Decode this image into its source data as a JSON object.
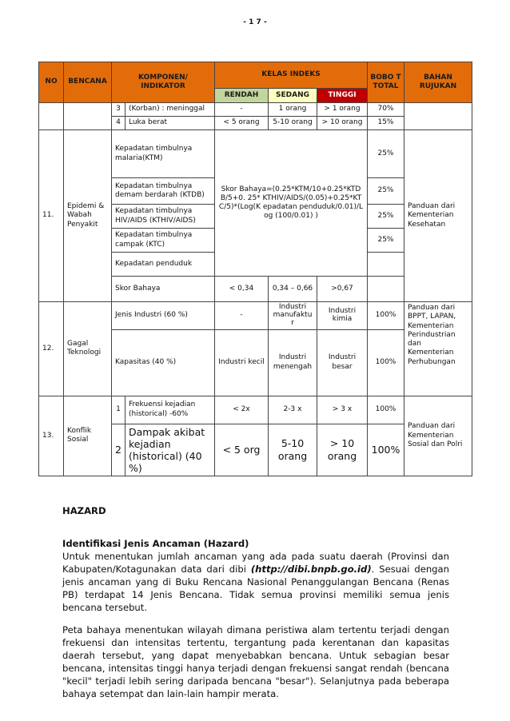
{
  "page_number": "- 1 7 -",
  "table": {
    "headers": {
      "no": "NO",
      "bencana": "BENCANA",
      "komponen": "KOMPONEN/ INDIKATOR",
      "kelas": "KELAS INDEKS",
      "rendah": "RENDAH",
      "sedang": "SEDANG",
      "tinggi": "TINGGI",
      "bobot": "BOBO T TOTAL",
      "bahan": "BAHAN RUJUKAN"
    },
    "colors": {
      "header": "#E36C0A",
      "rendah": "#C2D69B",
      "sedang": "#FFFFC0",
      "tinggi": "#C00000"
    },
    "cont": [
      {
        "n": "3",
        "k": "(Korban) : meninggal",
        "r": "-",
        "s": "1 orang",
        "t": "> 1 orang",
        "b": "70%"
      },
      {
        "n": "4",
        "k": "Luka berat",
        "r": "< 5  orang",
        "s": "5-10 orang",
        "t": "> 10 orang",
        "b": "15%"
      }
    ],
    "r11": {
      "no": "11.",
      "bencana": "Epidemi & Wabah Penyakit",
      "items": [
        {
          "k": "Kepadatan timbulnya malaria(KTM)",
          "b": "25%"
        },
        {
          "k": "Kepadatan timbulnya demam berdarah (KTDB)",
          "b": "25%"
        },
        {
          "k": "Kepadatan timbulnya HIV/AIDS (KTHIV/AIDS)",
          "b": "25%"
        },
        {
          "k": "Kepadatan timbulnya campak (KTC)",
          "b": "25%"
        },
        {
          "k": "Kepadatan penduduk",
          "b": ""
        }
      ],
      "formula": "Skor Bahaya=(0.25*KTM/10+0.25*KTDB/5+0. 25* KTHIV/AIDS/(0.05)+0.25*KTC/5)*(Log(K epadatan penduduk/0.01)/Log  (100/0.01) )",
      "skor": {
        "k": "Skor Bahaya",
        "r": "< 0,34",
        "s": "0,34 – 0,66",
        "t": ">0,67"
      },
      "bahan": "Panduan dari Kementerian Kesehatan"
    },
    "r12": {
      "no": "12.",
      "bencana": "Gagal Teknologi",
      "rows": [
        {
          "k": "Jenis Industri (60 %)",
          "r": "-",
          "s": "Industri manufaktur",
          "t": "Industri kimia",
          "b": "100%"
        },
        {
          "k": "Kapasitas (40 %)",
          "r": "Industri kecil",
          "s": "Industri menengah",
          "t": "Industri besar",
          "b": "100%"
        }
      ],
      "bahan": "Panduan dari BPPT, LAPAN, Kementerian Perindustrian dan Kementerian Perhubungan"
    },
    "r13": {
      "no": "13.",
      "bencana": "Konflik Sosial",
      "rows": [
        {
          "n": "1",
          "k": "Frekuensi kejadian (historical) -60%",
          "r": "< 2x",
          "s": "2-3 x",
          "t": "> 3 x",
          "b": "100%"
        },
        {
          "n": "2",
          "k": "Dampak akibat kejadian (historical) (40 %)",
          "r": "< 5 org",
          "s": "5-10 orang",
          "t": "> 10 orang",
          "b": "100%"
        }
      ],
      "bahan": "Panduan dari Kementerian Sosial dan Polri"
    }
  },
  "text": {
    "hazard": "HAZARD",
    "subheading": "Identifikasi Jenis Ancaman (Hazard)",
    "p1a": "Untuk menentukan jumlah ancaman yang ada pada suatu daerah (Provinsi dan Kabupaten/Kotagunakan data dari dibi ",
    "p1link": "(http://dibi.bnpb.go.id)",
    "p1b": ". Sesuai dengan jenis ancaman yang di Buku Rencana Nasional Penanggulangan Bencana (Renas PB) terdapat 14 Jenis Bencana. Tidak semua provinsi memiliki semua jenis bencana tersebut.",
    "p2": "Peta bahaya menentukan wilayah dimana peristiwa alam tertentu terjadi dengan frekuensi dan intensitas tertentu, tergantung pada kerentanan dan kapasitas daerah tersebut, yang dapat menyebabkan bencana. Untuk sebagian besar bencana, intensitas tinggi hanya terjadi dengan frekuensi sangat rendah (bencana \"kecil\" terjadi lebih sering daripada bencana \"besar\"). Selanjutnya pada beberapa bahaya setempat dan lain-lain hampir merata."
  }
}
